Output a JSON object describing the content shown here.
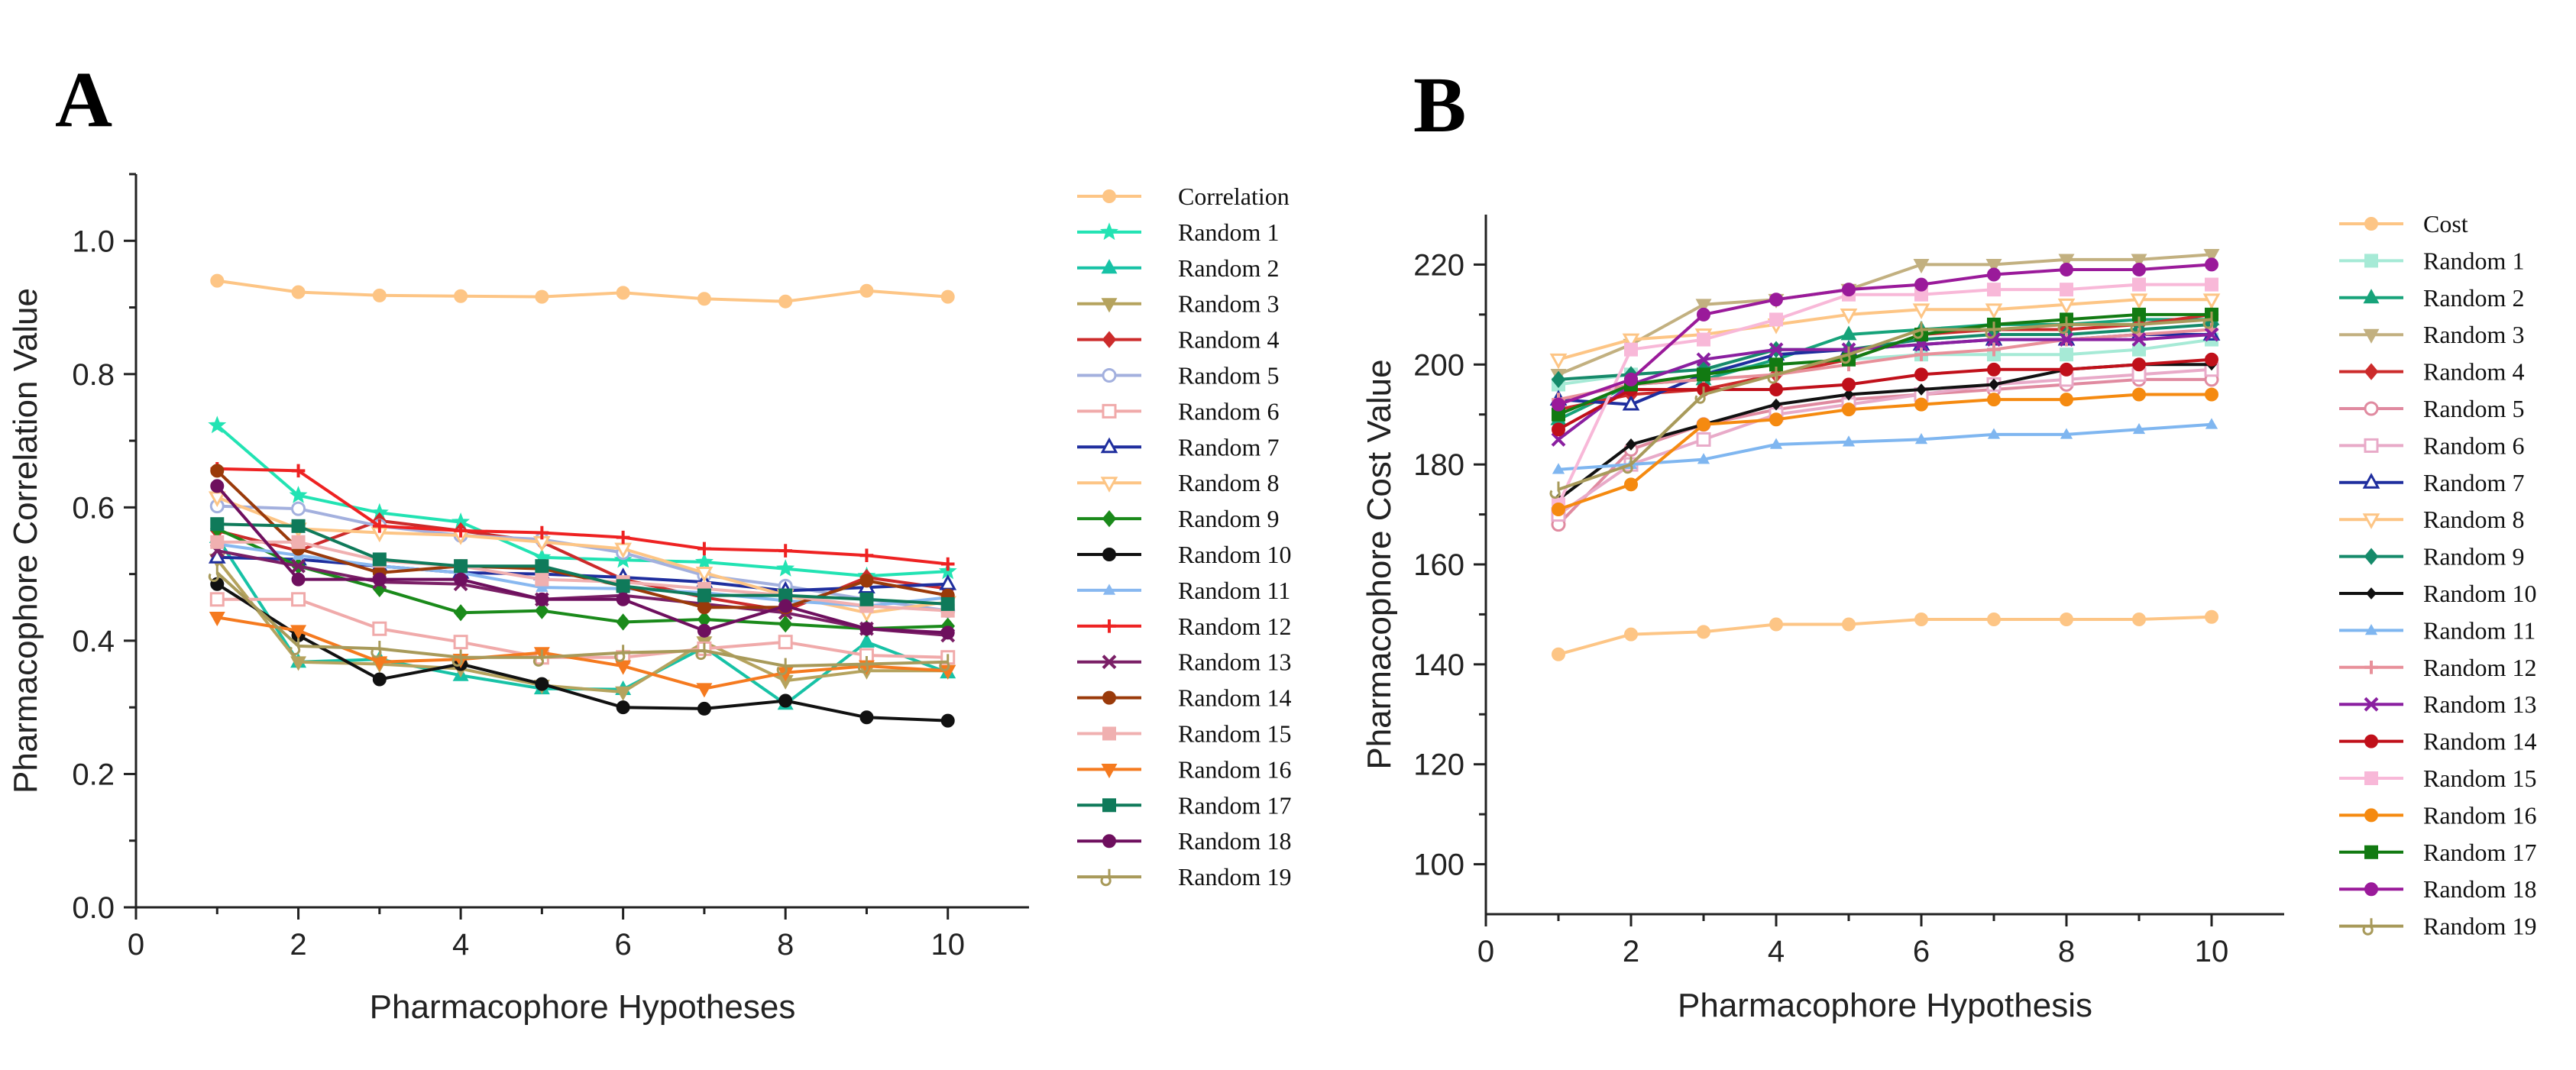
{
  "chart_data": [
    {
      "panel": "A",
      "type": "line",
      "xlabel": "Pharmacophore Hypotheses",
      "ylabel": "Pharmacophore Correlation Value",
      "xlim": [
        0,
        11
      ],
      "ylim": [
        0,
        1.1
      ],
      "xticks": [
        0,
        2,
        4,
        6,
        8,
        10
      ],
      "yticks": [
        0.0,
        0.2,
        0.4,
        0.6,
        0.8,
        1.0
      ],
      "ytick_labels": [
        "0.0",
        "0.2",
        "0.4",
        "0.6",
        "0.8",
        "1.0"
      ],
      "legend_position": "right",
      "x": [
        1,
        2,
        3,
        4,
        5,
        6,
        7,
        8,
        9,
        10
      ],
      "series": [
        {
          "name": "Correlation",
          "color": "#fdc585",
          "marker": "circle",
          "values": [
            0.94,
            0.923,
            0.918,
            0.917,
            0.916,
            0.922,
            0.913,
            0.909,
            0.925,
            0.916
          ]
        },
        {
          "name": "Random 1",
          "color": "#22e3b3",
          "marker": "star",
          "values": [
            0.723,
            0.618,
            0.592,
            0.578,
            0.525,
            0.521,
            0.518,
            0.508,
            0.497,
            0.504
          ]
        },
        {
          "name": "Random 2",
          "color": "#17c2a6",
          "marker": "triangle",
          "values": [
            0.555,
            0.368,
            0.372,
            0.348,
            0.328,
            0.327,
            0.39,
            0.305,
            0.398,
            0.352
          ]
        },
        {
          "name": "Random 3",
          "color": "#b5a35e",
          "marker": "triangle-down",
          "values": [
            0.522,
            0.368,
            0.365,
            0.358,
            0.333,
            0.323,
            0.398,
            0.34,
            0.355,
            0.355
          ]
        },
        {
          "name": "Random 4",
          "color": "#cc2b2b",
          "marker": "diamond",
          "values": [
            0.565,
            0.535,
            0.58,
            0.565,
            0.548,
            0.492,
            0.465,
            0.445,
            0.495,
            0.478
          ]
        },
        {
          "name": "Random 5",
          "color": "#a3b0de",
          "marker": "circle-open",
          "values": [
            0.602,
            0.598,
            0.572,
            0.558,
            0.552,
            0.532,
            0.498,
            0.482,
            0.462,
            0.445
          ]
        },
        {
          "name": "Random 6",
          "color": "#f0aaaa",
          "marker": "square-open",
          "values": [
            0.462,
            0.462,
            0.418,
            0.398,
            0.375,
            0.375,
            0.388,
            0.398,
            0.378,
            0.375
          ]
        },
        {
          "name": "Random 7",
          "color": "#1f2e9e",
          "marker": "triangle-open",
          "values": [
            0.525,
            0.522,
            0.512,
            0.502,
            0.5,
            0.495,
            0.488,
            0.475,
            0.48,
            0.485
          ]
        },
        {
          "name": "Random 8",
          "color": "#fdc585",
          "marker": "triangle-down-open",
          "values": [
            0.615,
            0.568,
            0.562,
            0.558,
            0.548,
            0.538,
            0.502,
            0.468,
            0.442,
            0.458
          ]
        },
        {
          "name": "Random 9",
          "color": "#1a8a1a",
          "marker": "diamond",
          "values": [
            0.568,
            0.512,
            0.478,
            0.442,
            0.445,
            0.428,
            0.432,
            0.425,
            0.418,
            0.422
          ]
        },
        {
          "name": "Random 10",
          "color": "#111111",
          "marker": "circle",
          "values": [
            0.485,
            0.408,
            0.342,
            0.365,
            0.335,
            0.3,
            0.298,
            0.31,
            0.285,
            0.28
          ]
        },
        {
          "name": "Random 11",
          "color": "#88b8f0",
          "marker": "triangle-small",
          "values": [
            0.545,
            0.528,
            0.512,
            0.502,
            0.48,
            0.478,
            0.472,
            0.46,
            0.452,
            0.465
          ]
        },
        {
          "name": "Random 12",
          "color": "#ee2222",
          "marker": "plus",
          "values": [
            0.658,
            0.655,
            0.572,
            0.565,
            0.562,
            0.555,
            0.538,
            0.535,
            0.528,
            0.515
          ]
        },
        {
          "name": "Random 13",
          "color": "#7a1f66",
          "marker": "x",
          "values": [
            0.535,
            0.512,
            0.488,
            0.485,
            0.462,
            0.468,
            0.455,
            0.442,
            0.418,
            0.408
          ]
        },
        {
          "name": "Random 14",
          "color": "#9a3a0a",
          "marker": "circle",
          "values": [
            0.655,
            0.538,
            0.502,
            0.512,
            0.508,
            0.482,
            0.45,
            0.45,
            0.49,
            0.468
          ]
        },
        {
          "name": "Random 15",
          "color": "#f0b0b0",
          "marker": "square",
          "values": [
            0.548,
            0.548,
            0.52,
            0.512,
            0.492,
            0.488,
            0.478,
            0.468,
            0.452,
            0.445
          ]
        },
        {
          "name": "Random 16",
          "color": "#f57a1f",
          "marker": "triangle-down",
          "values": [
            0.435,
            0.415,
            0.368,
            0.372,
            0.382,
            0.362,
            0.328,
            0.352,
            0.362,
            0.355
          ]
        },
        {
          "name": "Random 17",
          "color": "#0f7a5a",
          "marker": "square",
          "values": [
            0.575,
            0.572,
            0.522,
            0.512,
            0.512,
            0.482,
            0.468,
            0.468,
            0.462,
            0.455
          ]
        },
        {
          "name": "Random 18",
          "color": "#6e0f5e",
          "marker": "circle",
          "values": [
            0.632,
            0.492,
            0.492,
            0.492,
            0.462,
            0.462,
            0.415,
            0.452,
            0.418,
            0.412
          ]
        },
        {
          "name": "Random 19",
          "color": "#a89a5a",
          "marker": "hook",
          "values": [
            0.502,
            0.392,
            0.388,
            0.375,
            0.375,
            0.382,
            0.385,
            0.362,
            0.365,
            0.368
          ]
        }
      ]
    },
    {
      "panel": "B",
      "type": "line",
      "xlabel": "Pharmacophore Hypothesis",
      "ylabel": "Pharmacophore Cost Value",
      "xlim": [
        0,
        11
      ],
      "ylim": [
        90,
        230
      ],
      "xticks": [
        0,
        2,
        4,
        6,
        8,
        10
      ],
      "yticks": [
        100,
        120,
        140,
        160,
        180,
        200,
        220
      ],
      "ytick_labels": [
        "100",
        "120",
        "140",
        "160",
        "180",
        "200",
        "220"
      ],
      "legend_position": "right",
      "x": [
        1,
        2,
        3,
        4,
        5,
        6,
        7,
        8,
        9,
        10
      ],
      "series": [
        {
          "name": "Cost",
          "color": "#fdc585",
          "marker": "circle",
          "values": [
            142,
            146,
            146.5,
            148,
            148,
            149,
            149,
            149,
            149,
            149.5
          ]
        },
        {
          "name": "Random 1",
          "color": "#a6ead6",
          "marker": "square",
          "values": [
            196,
            198,
            199,
            200,
            201,
            202,
            202,
            202,
            203,
            205
          ]
        },
        {
          "name": "Random 2",
          "color": "#17a37a",
          "marker": "triangle",
          "values": [
            189,
            196,
            197,
            201,
            206,
            207,
            208,
            208,
            209,
            209
          ]
        },
        {
          "name": "Random 3",
          "color": "#c2b080",
          "marker": "triangle-down",
          "values": [
            198,
            204,
            212,
            213,
            215,
            220,
            220,
            221,
            221,
            222
          ]
        },
        {
          "name": "Random 4",
          "color": "#cc2b2b",
          "marker": "diamond",
          "values": [
            191,
            194,
            195,
            198,
            201,
            206,
            207,
            207,
            208,
            210
          ]
        },
        {
          "name": "Random 5",
          "color": "#e08aa0",
          "marker": "circle-open",
          "values": [
            168,
            183,
            188,
            191,
            193,
            194,
            195,
            196,
            197,
            197
          ]
        },
        {
          "name": "Random 6",
          "color": "#e8aac8",
          "marker": "square-open",
          "values": [
            170,
            180,
            185,
            190,
            192,
            194,
            196,
            197,
            198,
            199
          ]
        },
        {
          "name": "Random 7",
          "color": "#1f2e9e",
          "marker": "triangle-open",
          "values": [
            193,
            192,
            198,
            202,
            203,
            204,
            205,
            205,
            206,
            206
          ]
        },
        {
          "name": "Random 8",
          "color": "#fdc585",
          "marker": "triangle-down-open",
          "values": [
            201,
            205,
            206,
            208,
            210,
            211,
            211,
            212,
            213,
            213
          ]
        },
        {
          "name": "Random 9",
          "color": "#158a6a",
          "marker": "diamond",
          "values": [
            197,
            198,
            199,
            203,
            203,
            205,
            206,
            206,
            207,
            208
          ]
        },
        {
          "name": "Random 10",
          "color": "#111111",
          "marker": "diamond-small",
          "values": [
            173,
            184,
            188,
            192,
            194,
            195,
            196,
            199,
            200,
            200
          ]
        },
        {
          "name": "Random 11",
          "color": "#7fb6f0",
          "marker": "triangle-small",
          "values": [
            179,
            180,
            181,
            184,
            184.5,
            185,
            186,
            186,
            187,
            188
          ]
        },
        {
          "name": "Random 12",
          "color": "#e8909a",
          "marker": "plus",
          "values": [
            193,
            196,
            197,
            198,
            200,
            202,
            203,
            205,
            206,
            207
          ]
        },
        {
          "name": "Random 13",
          "color": "#8a1fa0",
          "marker": "x",
          "values": [
            185,
            196,
            201,
            203,
            203,
            204,
            205,
            205,
            205,
            206
          ]
        },
        {
          "name": "Random 14",
          "color": "#c0101a",
          "marker": "circle",
          "values": [
            187,
            195,
            195,
            195,
            196,
            198,
            199,
            199,
            200,
            201
          ]
        },
        {
          "name": "Random 15",
          "color": "#f8b8d8",
          "marker": "square",
          "values": [
            172,
            203,
            205,
            209,
            214,
            214,
            215,
            215,
            216,
            216
          ]
        },
        {
          "name": "Random 16",
          "color": "#f58a10",
          "marker": "circle",
          "values": [
            171,
            176,
            188,
            189,
            191,
            192,
            193,
            193,
            194,
            194
          ]
        },
        {
          "name": "Random 17",
          "color": "#127a12",
          "marker": "square",
          "values": [
            190,
            196,
            198,
            200,
            201,
            206,
            208,
            209,
            210,
            210
          ]
        },
        {
          "name": "Random 18",
          "color": "#9a1a9a",
          "marker": "circle",
          "values": [
            192,
            197,
            210,
            213,
            215,
            216,
            218,
            219,
            219,
            220
          ]
        },
        {
          "name": "Random 19",
          "color": "#a89a5a",
          "marker": "hook",
          "values": [
            175,
            180,
            194,
            198,
            202,
            207,
            207,
            208,
            208,
            209
          ]
        }
      ]
    }
  ]
}
